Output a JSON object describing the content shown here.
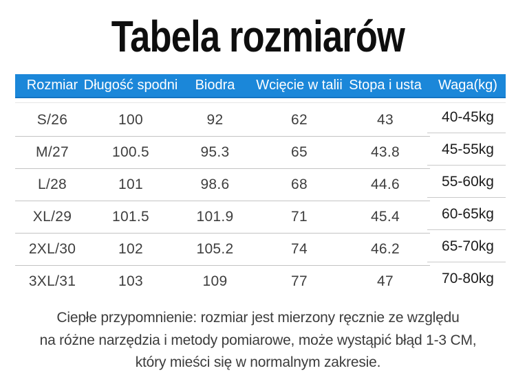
{
  "page": {
    "title": "Tabela rozmiarów"
  },
  "table": {
    "accent_color": "#1b87d9",
    "divider_color": "#c3c3c3",
    "columns": [
      "Rozmiar",
      "Długość spodni",
      "Biodra",
      "Wcięcie w talii",
      "Stopa i usta",
      "Waga(kg)"
    ],
    "rows": [
      {
        "size": "S/26",
        "pants_length": "100",
        "hips": "92",
        "waist": "62",
        "foot_mouth": "43",
        "weight": "40-45kg"
      },
      {
        "size": "M/27",
        "pants_length": "100.5",
        "hips": "95.3",
        "waist": "65",
        "foot_mouth": "43.8",
        "weight": "45-55kg"
      },
      {
        "size": "L/28",
        "pants_length": "101",
        "hips": "98.6",
        "waist": "68",
        "foot_mouth": "44.6",
        "weight": "55-60kg"
      },
      {
        "size": "XL/29",
        "pants_length": "101.5",
        "hips": "101.9",
        "waist": "71",
        "foot_mouth": "45.4",
        "weight": "60-65kg"
      },
      {
        "size": "2XL/30",
        "pants_length": "102",
        "hips": "105.2",
        "waist": "74",
        "foot_mouth": "46.2",
        "weight": "65-70kg"
      },
      {
        "size": "3XL/31",
        "pants_length": "103",
        "hips": "109",
        "waist": "77",
        "foot_mouth": "47",
        "weight": "70-80kg"
      }
    ]
  },
  "note": {
    "line1": "Ciepłe przypomnienie: rozmiar jest mierzony ręcznie ze względu",
    "line2": "na różne narzędzia i metody pomiarowe, może wystąpić błąd 1-3 CM,",
    "line3": "który mieści się w normalnym zakresie."
  }
}
